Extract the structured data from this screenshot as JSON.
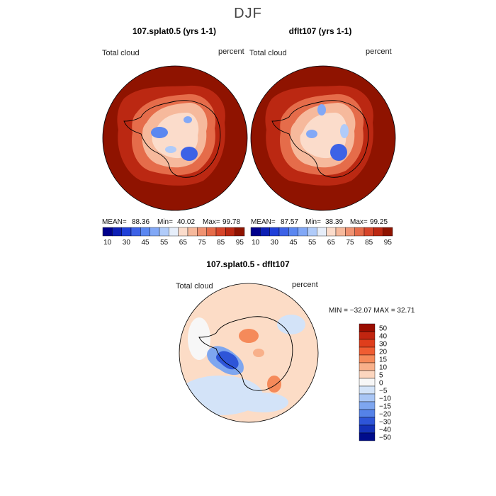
{
  "page": {
    "main_title": "DJF"
  },
  "panels": [
    {
      "title": "107.splat0.5 (yrs 1-1)",
      "left_label": "Total cloud",
      "right_label": "percent",
      "mean_label": "MEAN=",
      "mean": "88.36",
      "min_label": "Min=",
      "min": "40.02",
      "max_label": "Max=",
      "max": "99.78"
    },
    {
      "title": "dflt107 (yrs 1-1)",
      "left_label": "Total cloud",
      "right_label": "percent",
      "mean_label": "MEAN=",
      "mean": "87.57",
      "min_label": "Min=",
      "min": "38.39",
      "max_label": "Max=",
      "max": "99.25"
    }
  ],
  "diff_panel": {
    "title": "107.splat0.5 - dflt107",
    "left_label": "Total cloud",
    "right_label": "percent",
    "minmax_text": "MIN = −32.07  MAX =  32.71"
  },
  "chart_data": [
    {
      "type": "heatmap",
      "title": "107.splat0.5 (yrs 1-1)",
      "variable": "Total cloud",
      "units": "percent",
      "projection": "south polar stereographic",
      "stats": {
        "mean": 88.36,
        "min": 40.02,
        "max": 99.78
      },
      "colorbar_levels": [
        10,
        20,
        30,
        40,
        45,
        50,
        55,
        60,
        65,
        70,
        75,
        80,
        85,
        90,
        95
      ],
      "colorbar_tick_labels": [
        "10",
        "30",
        "45",
        "55",
        "65",
        "75",
        "85",
        "95"
      ]
    },
    {
      "type": "heatmap",
      "title": "dflt107 (yrs 1-1)",
      "variable": "Total cloud",
      "units": "percent",
      "projection": "south polar stereographic",
      "stats": {
        "mean": 87.57,
        "min": 38.39,
        "max": 99.25
      },
      "colorbar_levels": [
        10,
        20,
        30,
        40,
        45,
        50,
        55,
        60,
        65,
        70,
        75,
        80,
        85,
        90,
        95
      ],
      "colorbar_tick_labels": [
        "10",
        "30",
        "45",
        "55",
        "65",
        "75",
        "85",
        "95"
      ]
    },
    {
      "type": "heatmap",
      "title": "107.splat0.5 - dflt107",
      "variable": "Total cloud",
      "units": "percent",
      "projection": "south polar stereographic",
      "stats": {
        "min": -32.07,
        "max": 32.71
      },
      "colorbar_levels": [
        50,
        40,
        30,
        20,
        15,
        10,
        5,
        0,
        -5,
        -10,
        -15,
        -20,
        -30,
        -40,
        -50
      ],
      "colorbar_tick_labels": [
        "50",
        "40",
        "30",
        "20",
        "15",
        "10",
        "5",
        "0",
        "−5",
        "−10",
        "−15",
        "−20",
        "−30",
        "−40",
        "−50"
      ]
    }
  ],
  "colors": {
    "abs_scale": [
      "#00008b",
      "#0d1fb4",
      "#2040d8",
      "#3d62e6",
      "#5b87f0",
      "#82a8f6",
      "#b0cbf9",
      "#e6eefa",
      "#fbdccb",
      "#f6b99c",
      "#ef9271",
      "#e56c4a",
      "#d6452a",
      "#bb2812",
      "#8f1300"
    ],
    "diff_scale": [
      "#9a0d00",
      "#c12510",
      "#df3e1c",
      "#ef5d32",
      "#f58a5a",
      "#f8b08a",
      "#fcd6bf",
      "#f7f7f7",
      "#d3e3f8",
      "#a9c6f5",
      "#7ea6ef",
      "#5582e8",
      "#2e55d8",
      "#1431b8",
      "#000c8c"
    ],
    "ocean_abs": "#8f1300",
    "ocean_diff": "#fcdcc6"
  }
}
